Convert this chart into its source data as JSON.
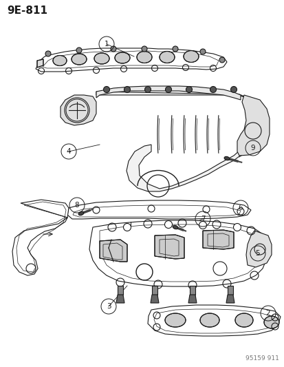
{
  "title_code": "9E-811",
  "footer_code": "95159 911",
  "bg_color": "#ffffff",
  "line_color": "#1a1a1a",
  "title_fontsize": 11,
  "footer_fontsize": 6.5,
  "callout_fontsize": 7.5,
  "fig_width": 4.14,
  "fig_height": 5.33,
  "dpi": 100
}
